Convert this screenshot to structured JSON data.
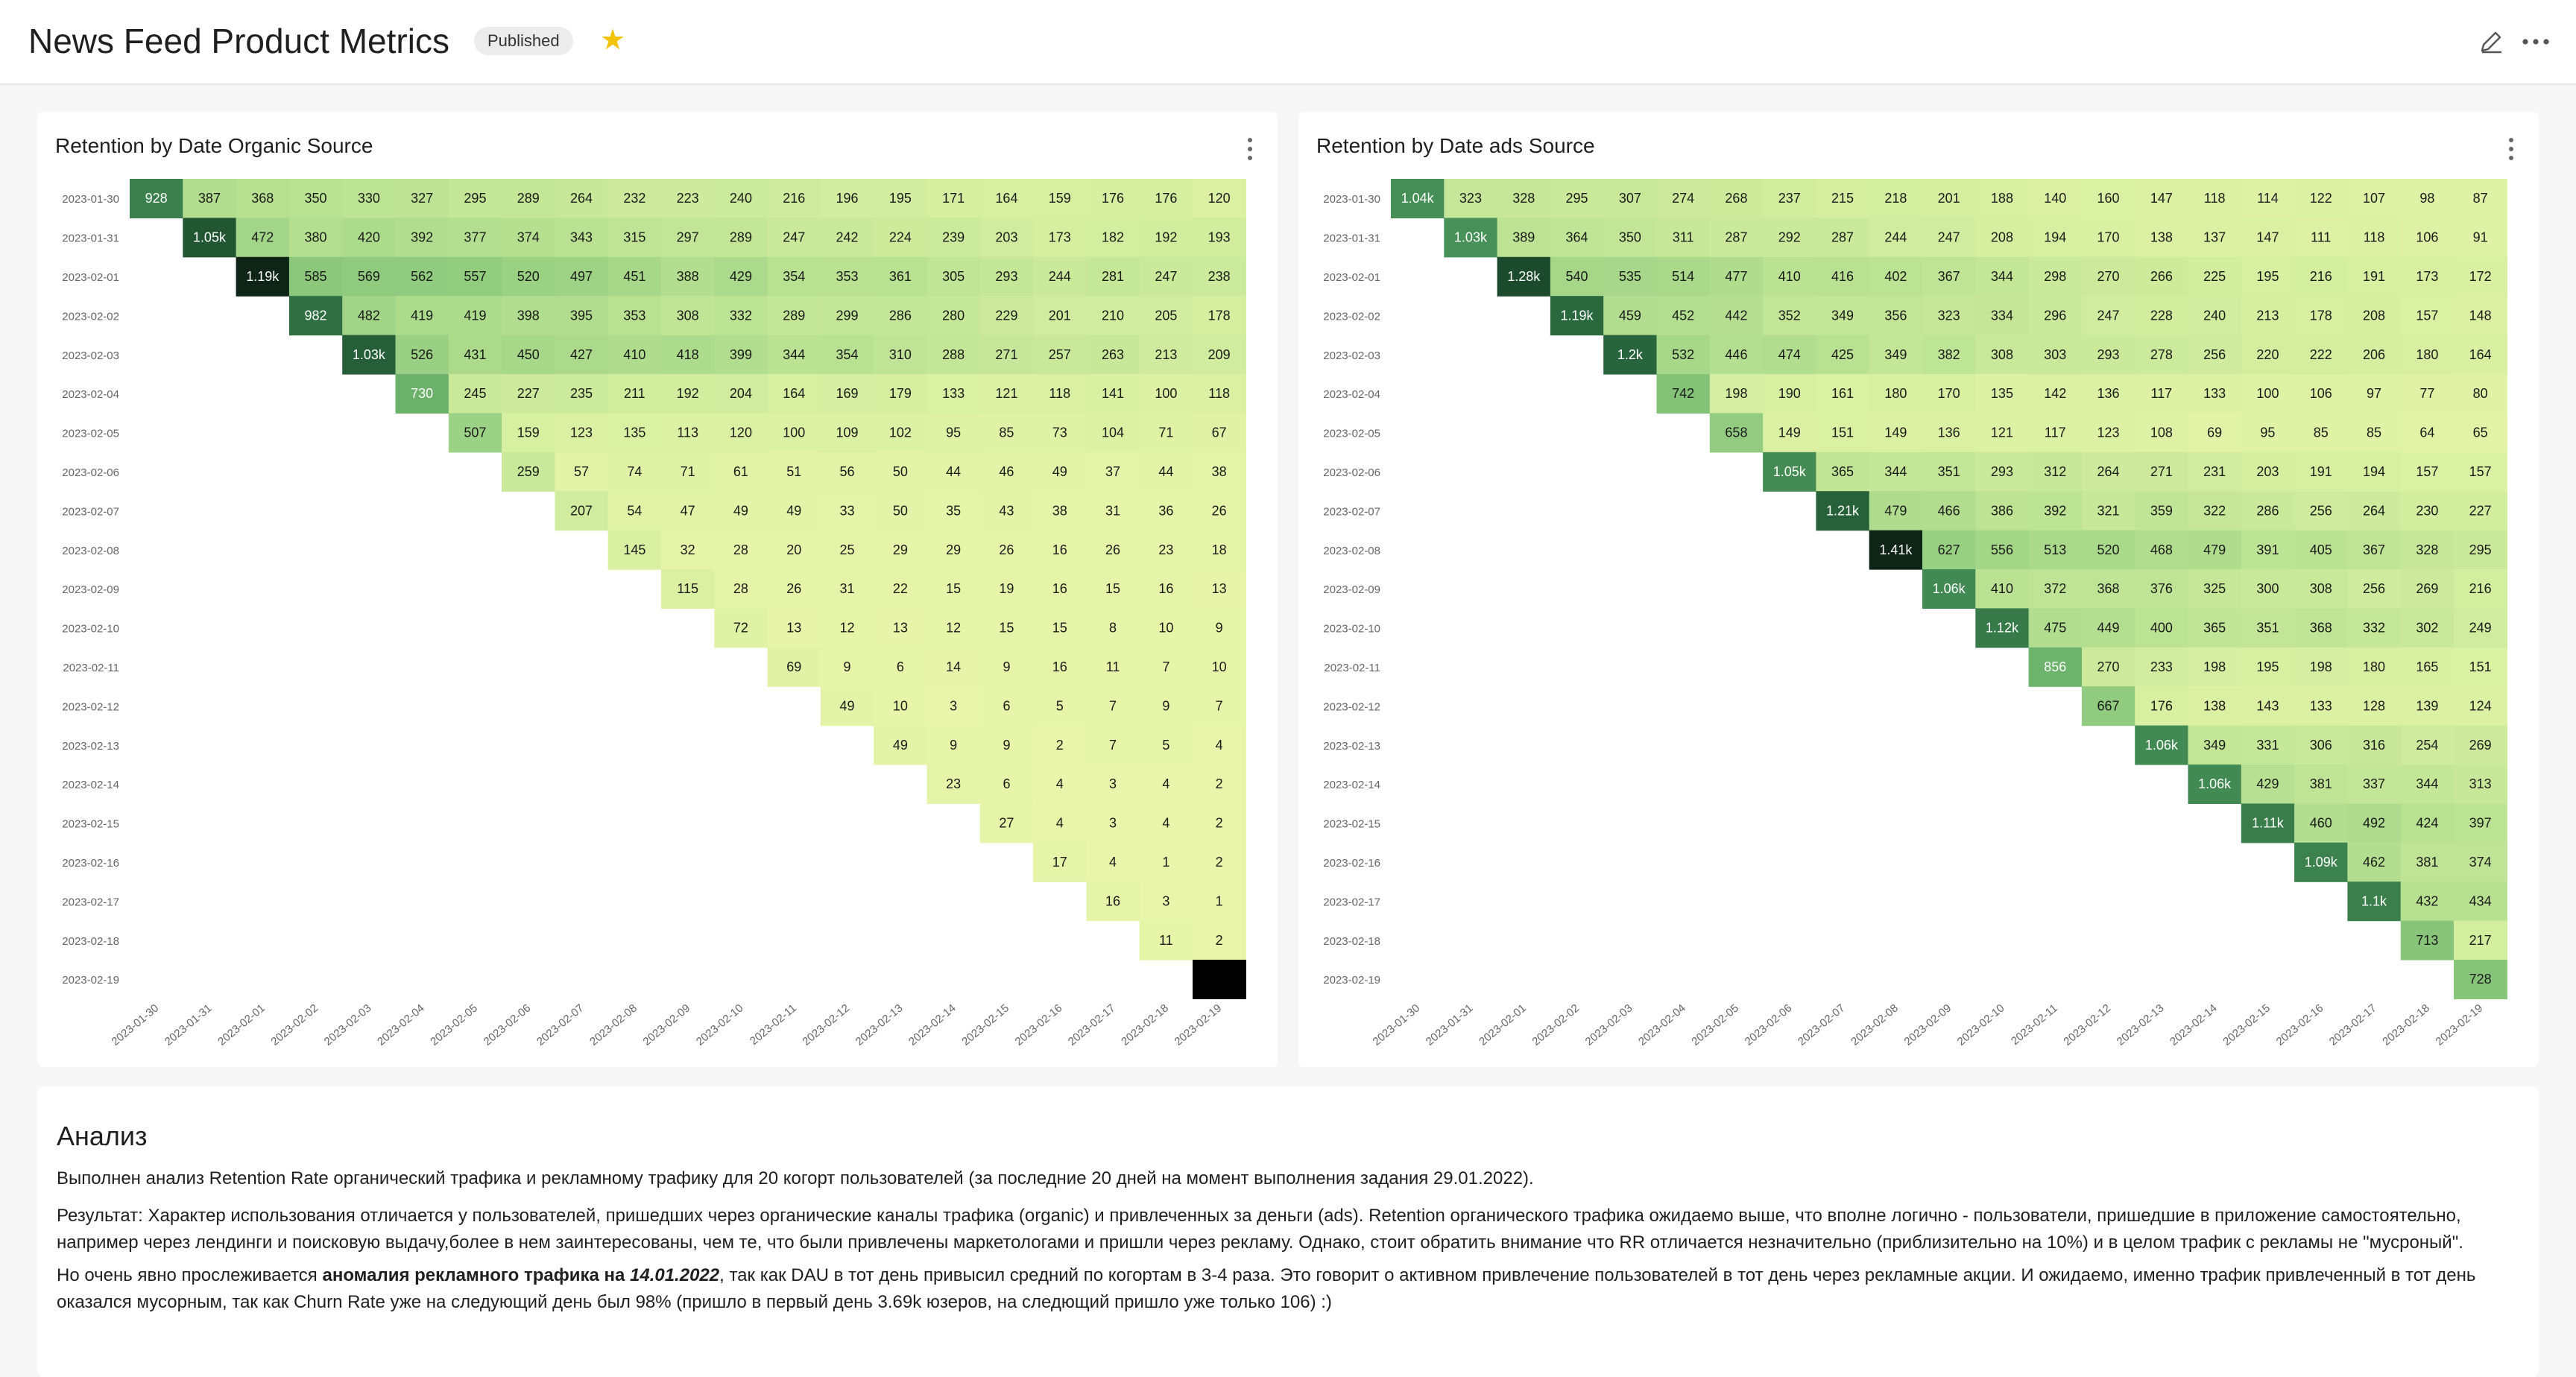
{
  "header": {
    "title": "News Feed Product Metrics",
    "status_badge": "Published",
    "star_icon": "star-icon",
    "edit_icon": "edit-icon",
    "more_icon": "more-horizontal-icon"
  },
  "colors": {
    "accent_star": "#f3c300",
    "heat_low": "#e7f5a5",
    "heat_high": "#0f2d1a"
  },
  "charts": {
    "organic": {
      "title": "Retention by Date Organic Source"
    },
    "ads": {
      "title": "Retention by Date ads Source"
    }
  },
  "chart_data": [
    {
      "type": "heatmap",
      "title": "Retention by Date Organic Source",
      "rows": [
        "2023-01-30",
        "2023-01-31",
        "2023-02-01",
        "2023-02-02",
        "2023-02-03",
        "2023-02-04",
        "2023-02-05",
        "2023-02-06",
        "2023-02-07",
        "2023-02-08",
        "2023-02-09",
        "2023-02-10",
        "2023-02-11",
        "2023-02-12",
        "2023-02-13",
        "2023-02-14",
        "2023-02-15",
        "2023-02-16",
        "2023-02-17",
        "2023-02-18",
        "2023-02-19"
      ],
      "columns": [
        "2023-01-30",
        "2023-01-31",
        "2023-02-01",
        "2023-02-02",
        "2023-02-03",
        "2023-02-04",
        "2023-02-05",
        "2023-02-06",
        "2023-02-07",
        "2023-02-08",
        "2023-02-09",
        "2023-02-10",
        "2023-02-11",
        "2023-02-12",
        "2023-02-13",
        "2023-02-14",
        "2023-02-15",
        "2023-02-16",
        "2023-02-17",
        "2023-02-18",
        "2023-02-19"
      ],
      "values": [
        [
          "928",
          "387",
          "368",
          "350",
          "330",
          "327",
          "295",
          "289",
          "264",
          "232",
          "223",
          "240",
          "216",
          "196",
          "195",
          "171",
          "164",
          "159",
          "176",
          "176",
          "120"
        ],
        [
          "",
          "1.05k",
          "472",
          "380",
          "420",
          "392",
          "377",
          "374",
          "343",
          "315",
          "297",
          "289",
          "247",
          "242",
          "224",
          "239",
          "203",
          "173",
          "182",
          "192",
          "193"
        ],
        [
          "",
          "",
          "1.19k",
          "585",
          "569",
          "562",
          "557",
          "520",
          "497",
          "451",
          "388",
          "429",
          "354",
          "353",
          "361",
          "305",
          "293",
          "244",
          "281",
          "247",
          "238"
        ],
        [
          "",
          "",
          "",
          "982",
          "482",
          "419",
          "419",
          "398",
          "395",
          "353",
          "308",
          "332",
          "289",
          "299",
          "286",
          "280",
          "229",
          "201",
          "210",
          "205",
          "178"
        ],
        [
          "",
          "",
          "",
          "",
          "1.03k",
          "526",
          "431",
          "450",
          "427",
          "410",
          "418",
          "399",
          "344",
          "354",
          "310",
          "288",
          "271",
          "257",
          "263",
          "213",
          "209"
        ],
        [
          "",
          "",
          "",
          "",
          "",
          "730",
          "245",
          "227",
          "235",
          "211",
          "192",
          "204",
          "164",
          "169",
          "179",
          "133",
          "121",
          "118",
          "141",
          "100",
          "118"
        ],
        [
          "",
          "",
          "",
          "",
          "",
          "",
          "507",
          "159",
          "123",
          "135",
          "113",
          "120",
          "100",
          "109",
          "102",
          "95",
          "85",
          "73",
          "104",
          "71",
          "67"
        ],
        [
          "",
          "",
          "",
          "",
          "",
          "",
          "",
          "259",
          "57",
          "74",
          "71",
          "61",
          "51",
          "56",
          "50",
          "44",
          "46",
          "49",
          "37",
          "44",
          "38"
        ],
        [
          "",
          "",
          "",
          "",
          "",
          "",
          "",
          "",
          "207",
          "54",
          "47",
          "49",
          "49",
          "33",
          "50",
          "35",
          "43",
          "38",
          "31",
          "36",
          "26"
        ],
        [
          "",
          "",
          "",
          "",
          "",
          "",
          "",
          "",
          "",
          "145",
          "32",
          "28",
          "20",
          "25",
          "29",
          "29",
          "26",
          "16",
          "26",
          "23",
          "18"
        ],
        [
          "",
          "",
          "",
          "",
          "",
          "",
          "",
          "",
          "",
          "",
          "115",
          "28",
          "26",
          "31",
          "22",
          "15",
          "19",
          "16",
          "15",
          "16",
          "13"
        ],
        [
          "",
          "",
          "",
          "",
          "",
          "",
          "",
          "",
          "",
          "",
          "",
          "72",
          "13",
          "12",
          "13",
          "12",
          "15",
          "15",
          "8",
          "10",
          "9"
        ],
        [
          "",
          "",
          "",
          "",
          "",
          "",
          "",
          "",
          "",
          "",
          "",
          "",
          "69",
          "9",
          "6",
          "14",
          "9",
          "16",
          "11",
          "7",
          "10"
        ],
        [
          "",
          "",
          "",
          "",
          "",
          "",
          "",
          "",
          "",
          "",
          "",
          "",
          "",
          "49",
          "10",
          "3",
          "6",
          "5",
          "7",
          "9",
          "7"
        ],
        [
          "",
          "",
          "",
          "",
          "",
          "",
          "",
          "",
          "",
          "",
          "",
          "",
          "",
          "",
          "49",
          "9",
          "9",
          "2",
          "7",
          "5",
          "4"
        ],
        [
          "",
          "",
          "",
          "",
          "",
          "",
          "",
          "",
          "",
          "",
          "",
          "",
          "",
          "",
          "",
          "23",
          "6",
          "4",
          "3",
          "4",
          "2"
        ],
        [
          "",
          "",
          "",
          "",
          "",
          "",
          "",
          "",
          "",
          "",
          "",
          "",
          "",
          "",
          "",
          "",
          "27",
          "4",
          "3",
          "4",
          "2"
        ],
        [
          "",
          "",
          "",
          "",
          "",
          "",
          "",
          "",
          "",
          "",
          "",
          "",
          "",
          "",
          "",
          "",
          "",
          "17",
          "4",
          "1",
          "2"
        ],
        [
          "",
          "",
          "",
          "",
          "",
          "",
          "",
          "",
          "",
          "",
          "",
          "",
          "",
          "",
          "",
          "",
          "",
          "",
          "16",
          "3",
          "1"
        ],
        [
          "",
          "",
          "",
          "",
          "",
          "",
          "",
          "",
          "",
          "",
          "",
          "",
          "",
          "",
          "",
          "",
          "",
          "",
          "",
          "11",
          "2"
        ],
        [
          "",
          "",
          "",
          "",
          "",
          "",
          "",
          "",
          "",
          "",
          "",
          "",
          "",
          "",
          "",
          "",
          "",
          "",
          "",
          "",
          "?"
        ]
      ]
    },
    {
      "type": "heatmap",
      "title": "Retention by Date ads Source",
      "rows": [
        "2023-01-30",
        "2023-01-31",
        "2023-02-01",
        "2023-02-02",
        "2023-02-03",
        "2023-02-04",
        "2023-02-05",
        "2023-02-06",
        "2023-02-07",
        "2023-02-08",
        "2023-02-09",
        "2023-02-10",
        "2023-02-11",
        "2023-02-12",
        "2023-02-13",
        "2023-02-14",
        "2023-02-15",
        "2023-02-16",
        "2023-02-17",
        "2023-02-18",
        "2023-02-19"
      ],
      "columns": [
        "2023-01-30",
        "2023-01-31",
        "2023-02-01",
        "2023-02-02",
        "2023-02-03",
        "2023-02-04",
        "2023-02-05",
        "2023-02-06",
        "2023-02-07",
        "2023-02-08",
        "2023-02-09",
        "2023-02-10",
        "2023-02-11",
        "2023-02-12",
        "2023-02-13",
        "2023-02-14",
        "2023-02-15",
        "2023-02-16",
        "2023-02-17",
        "2023-02-18",
        "2023-02-19"
      ],
      "values": [
        [
          "1.04k",
          "323",
          "328",
          "295",
          "307",
          "274",
          "268",
          "237",
          "215",
          "218",
          "201",
          "188",
          "140",
          "160",
          "147",
          "118",
          "114",
          "122",
          "107",
          "98",
          "87"
        ],
        [
          "",
          "1.03k",
          "389",
          "364",
          "350",
          "311",
          "287",
          "292",
          "287",
          "244",
          "247",
          "208",
          "194",
          "170",
          "138",
          "137",
          "147",
          "111",
          "118",
          "106",
          "91"
        ],
        [
          "",
          "",
          "1.28k",
          "540",
          "535",
          "514",
          "477",
          "410",
          "416",
          "402",
          "367",
          "344",
          "298",
          "270",
          "266",
          "225",
          "195",
          "216",
          "191",
          "173",
          "172"
        ],
        [
          "",
          "",
          "",
          "1.19k",
          "459",
          "452",
          "442",
          "352",
          "349",
          "356",
          "323",
          "334",
          "296",
          "247",
          "228",
          "240",
          "213",
          "178",
          "208",
          "157",
          "148"
        ],
        [
          "",
          "",
          "",
          "",
          "1.2k",
          "532",
          "446",
          "474",
          "425",
          "349",
          "382",
          "308",
          "303",
          "293",
          "278",
          "256",
          "220",
          "222",
          "206",
          "180",
          "164"
        ],
        [
          "",
          "",
          "",
          "",
          "",
          "742",
          "198",
          "190",
          "161",
          "180",
          "170",
          "135",
          "142",
          "136",
          "117",
          "133",
          "100",
          "106",
          "97",
          "77",
          "80"
        ],
        [
          "",
          "",
          "",
          "",
          "",
          "",
          "658",
          "149",
          "151",
          "149",
          "136",
          "121",
          "117",
          "123",
          "108",
          "69",
          "95",
          "85",
          "85",
          "64",
          "65"
        ],
        [
          "",
          "",
          "",
          "",
          "",
          "",
          "",
          "1.05k",
          "365",
          "344",
          "351",
          "293",
          "312",
          "264",
          "271",
          "231",
          "203",
          "191",
          "194",
          "157",
          "157"
        ],
        [
          "",
          "",
          "",
          "",
          "",
          "",
          "",
          "",
          "1.21k",
          "479",
          "466",
          "386",
          "392",
          "321",
          "359",
          "322",
          "286",
          "256",
          "264",
          "230",
          "227"
        ],
        [
          "",
          "",
          "",
          "",
          "",
          "",
          "",
          "",
          "",
          "1.41k",
          "627",
          "556",
          "513",
          "520",
          "468",
          "479",
          "391",
          "405",
          "367",
          "328",
          "295"
        ],
        [
          "",
          "",
          "",
          "",
          "",
          "",
          "",
          "",
          "",
          "",
          "1.06k",
          "410",
          "372",
          "368",
          "376",
          "325",
          "300",
          "308",
          "256",
          "269",
          "216"
        ],
        [
          "",
          "",
          "",
          "",
          "",
          "",
          "",
          "",
          "",
          "",
          "",
          "1.12k",
          "475",
          "449",
          "400",
          "365",
          "351",
          "368",
          "332",
          "302",
          "249"
        ],
        [
          "",
          "",
          "",
          "",
          "",
          "",
          "",
          "",
          "",
          "",
          "",
          "",
          "856",
          "270",
          "233",
          "198",
          "195",
          "198",
          "180",
          "165",
          "151"
        ],
        [
          "",
          "",
          "",
          "",
          "",
          "",
          "",
          "",
          "",
          "",
          "",
          "",
          "",
          "667",
          "176",
          "138",
          "143",
          "133",
          "128",
          "139",
          "124"
        ],
        [
          "",
          "",
          "",
          "",
          "",
          "",
          "",
          "",
          "",
          "",
          "",
          "",
          "",
          "",
          "1.06k",
          "349",
          "331",
          "306",
          "316",
          "254",
          "269"
        ],
        [
          "",
          "",
          "",
          "",
          "",
          "",
          "",
          "",
          "",
          "",
          "",
          "",
          "",
          "",
          "",
          "1.06k",
          "429",
          "381",
          "337",
          "344",
          "313"
        ],
        [
          "",
          "",
          "",
          "",
          "",
          "",
          "",
          "",
          "",
          "",
          "",
          "",
          "",
          "",
          "",
          "",
          "1.11k",
          "460",
          "492",
          "424",
          "397"
        ],
        [
          "",
          "",
          "",
          "",
          "",
          "",
          "",
          "",
          "",
          "",
          "",
          "",
          "",
          "",
          "",
          "",
          "",
          "1.09k",
          "462",
          "381",
          "374"
        ],
        [
          "",
          "",
          "",
          "",
          "",
          "",
          "",
          "",
          "",
          "",
          "",
          "",
          "",
          "",
          "",
          "",
          "",
          "",
          "1.1k",
          "432",
          "434"
        ],
        [
          "",
          "",
          "",
          "",
          "",
          "",
          "",
          "",
          "",
          "",
          "",
          "",
          "",
          "",
          "",
          "",
          "",
          "",
          "",
          "713",
          "217"
        ],
        [
          "",
          "",
          "",
          "",
          "",
          "",
          "",
          "",
          "",
          "",
          "",
          "",
          "",
          "",
          "",
          "",
          "",
          "",
          "",
          "",
          "728"
        ]
      ]
    }
  ],
  "analysis": {
    "title": "Анализ",
    "p1": "Выполнен анализ Retention Rate органический трафика и рекламному трафику для 20 когорт пользователей (за последние 20 дней на момент выполнения задания 29.01.2022).",
    "p2": "Результат: Характер использования отличается у пользователей, пришедших через органические каналы трафика (organic) и привлеченных за деньги (ads). Retention органического трафика ожидаемо выше, что вполне логично - пользователи, пришедшие в приложение самостоятельно, например через лендинги и поисковую выдачу,более в нем заинтересованы, чем те, что были привлечены маркетологами и пришли через рекламу. Однако, стоит обратить внимание что RR отличается незначительно (приблизительно на 10%) и в целом трафик с рекламы не \"мусроный\".",
    "p3_prefix": "Но очень явно прослеживается ",
    "p3_bold": "аномалия рекламного трафика на ",
    "p3_bold_italic": "14.01.2022",
    "p3_suffix": ", так как DAU в тот день привысил средний по когортам в 3-4 раза. Это говорит о активном привлечение пользователей в тот день через рекламные акции. И ожидаемо, именно трафик привлеченный в тот день оказался мусорным, так как Churn Rate уже на следующий день был 98% (пришло в первый день 3.69k юзеров, на следющий пришло уже только 106) :)"
  }
}
